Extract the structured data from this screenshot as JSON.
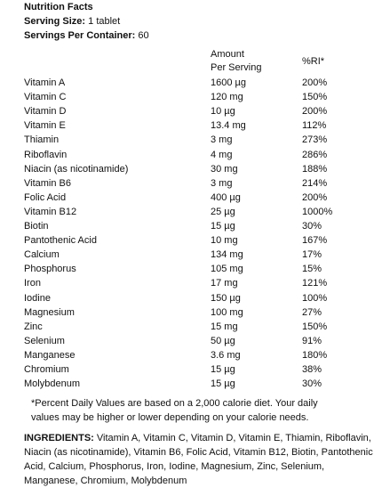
{
  "header": {
    "title": "Nutrition Facts",
    "serving_size_label": "Serving Size:",
    "serving_size_value": "1 tablet",
    "servings_label": "Servings Per Container:",
    "servings_value": "60"
  },
  "table": {
    "columns": [
      "Amount",
      "Per Serving",
      "%RI*"
    ],
    "rows": [
      [
        "Vitamin A",
        "1600 µg",
        "200%"
      ],
      [
        "Vitamin C",
        "120 mg",
        "150%"
      ],
      [
        "Vitamin D",
        "10 µg",
        "200%"
      ],
      [
        "Vitamin E",
        "13.4 mg",
        "112%"
      ],
      [
        "Thiamin",
        "3 mg",
        "273%"
      ],
      [
        "Riboflavin",
        "4 mg",
        "286%"
      ],
      [
        "Niacin (as nicotinamide)",
        "30 mg",
        "188%"
      ],
      [
        "Vitamin B6",
        "3 mg",
        "214%"
      ],
      [
        "Folic Acid",
        "400 µg",
        "200%"
      ],
      [
        "Vitamin B12",
        "25 µg",
        "1000%"
      ],
      [
        "Biotin",
        "15 µg",
        "30%"
      ],
      [
        "Pantothenic Acid",
        "10 mg",
        "167%"
      ],
      [
        "Calcium",
        "134 mg",
        "17%"
      ],
      [
        "Phosphorus",
        "105 mg",
        "15%"
      ],
      [
        "Iron",
        "17 mg",
        "121%"
      ],
      [
        "Iodine",
        "150 µg",
        "100%"
      ],
      [
        "Magnesium",
        "100 mg",
        "27%"
      ],
      [
        "Zinc",
        "15 mg",
        "150%"
      ],
      [
        "Selenium",
        "50 µg",
        "91%"
      ],
      [
        "Manganese",
        "3.6 mg",
        "180%"
      ],
      [
        "Chromium",
        "15 µg",
        "38%"
      ],
      [
        "Molybdenum",
        "15 µg",
        "30%"
      ]
    ]
  },
  "footnote": "*Percent Daily Values are based on a 2,000 calorie diet. Your daily values may be higher or lower depending on your calorie needs.",
  "ingredients": {
    "label": "INGREDIENTS:",
    "text": "Vitamin A, Vitamin C, Vitamin D, Vitamin E, Thiamin, Riboflavin, Niacin (as nicotinamide), Vitamin B6, Folic Acid, Vitamin B12, Biotin, Pantothenic Acid, Calcium, Phosphorus, Iron, Iodine, Magnesium, Zinc, Selenium, Manganese, Chromium, Molybdenum"
  }
}
